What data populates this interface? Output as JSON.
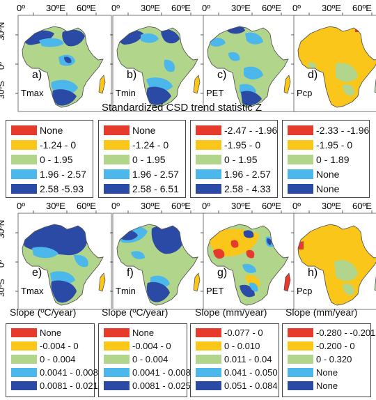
{
  "colors": {
    "red": "#e63a2c",
    "yellow": "#fac619",
    "lightgreen": "#b1d58b",
    "lightblue": "#4bb7ea",
    "darkblue": "#2b4aa5",
    "ocean": "#ffffff"
  },
  "axes": {
    "top_ticks": [
      "0º",
      "30ºE",
      "60ºE"
    ],
    "left_ticks": [
      "30ºN",
      "0º",
      "30ºS"
    ]
  },
  "maps_top": [
    {
      "letter": "a)",
      "var": "Tmax",
      "pattern": "a"
    },
    {
      "letter": "b)",
      "var": "Tmin",
      "pattern": "b"
    },
    {
      "letter": "c)",
      "var": "PET",
      "pattern": "c"
    },
    {
      "letter": "d)",
      "var": "Pcp",
      "pattern": "d"
    }
  ],
  "maps_bottom": [
    {
      "letter": "e)",
      "var": "Tmax",
      "pattern": "e"
    },
    {
      "letter": "f)",
      "var": "Tmin",
      "pattern": "f"
    },
    {
      "letter": "g)",
      "var": "PET",
      "pattern": "g"
    },
    {
      "letter": "h)",
      "var": "Pcp",
      "pattern": "h"
    }
  ],
  "caption_top": "Standardized CSD trend statistic Z",
  "slope_labels": [
    "Slope (ºC/year)",
    "Slope (ºC/year)",
    "Slope (mm/year)",
    "Slope (mm/year)"
  ],
  "legends_top": [
    [
      "None",
      "-1.24 - 0",
      "0 - 1.95",
      "1.96 - 2.57",
      "2.58 -5.93"
    ],
    [
      "None",
      "-1.24 - 0",
      "0 - 1.95",
      "1.96 - 2.57",
      "2.58 - 6.51"
    ],
    [
      "-2.47 - -1.96",
      "-1.95 - 0",
      "0 - 1.95",
      "1.96 - 2.57",
      "2.58 - 4.33"
    ],
    [
      "-2.33 - -1.96",
      "-1.95 - 0",
      "0 - 1.89",
      "None",
      "None"
    ]
  ],
  "legends_bottom": [
    [
      "None",
      "-0.004 - 0",
      "0 - 0.004",
      "0.0041 - 0.008",
      "0.0081 - 0.021"
    ],
    [
      "None",
      "-0.004 - 0",
      "0 - 0.004",
      "0.0041 - 0.008",
      "0.0081 - 0.025"
    ],
    [
      "-0.077 - 0",
      "0 - 0.010",
      "0.011 - 0.04",
      "0.041 - 0.050",
      "0.051 - 0.084"
    ],
    [
      "-0.280 - -0.201",
      "-0.200 - 0",
      "0 - 0.320",
      "None",
      "None"
    ]
  ],
  "legend_color_keys": [
    "red",
    "yellow",
    "lightgreen",
    "lightblue",
    "darkblue"
  ]
}
